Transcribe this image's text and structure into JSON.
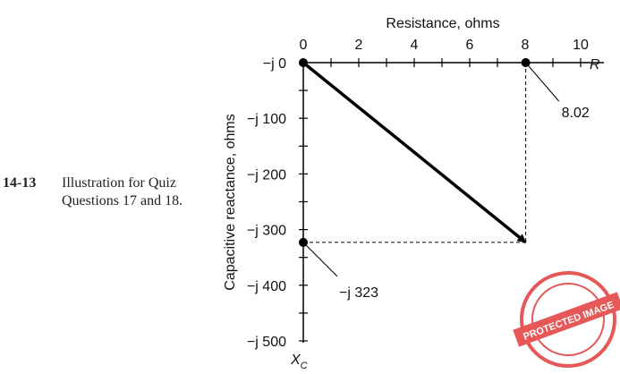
{
  "caption": {
    "number": "14-13",
    "lines": [
      "Illustration for Quiz",
      "Questions 17 and 18."
    ]
  },
  "chart_data": {
    "type": "vector-diagram",
    "x_axis": {
      "title": "Resistance, ohms",
      "symbol": "R",
      "range": [
        0,
        10
      ],
      "labeled_ticks": [
        0,
        2,
        4,
        6,
        8,
        10
      ],
      "tick_labels": [
        "0",
        "2",
        "4",
        "6",
        "8",
        "10"
      ],
      "minor_step": 1
    },
    "y_axis": {
      "title": "Capacitive reactance, ohms",
      "symbol": "X",
      "symbol_subscript": "C",
      "range": [
        0,
        -500
      ],
      "labeled_ticks": [
        0,
        -100,
        -200,
        -300,
        -400,
        -500
      ],
      "tick_labels": [
        "−j 0",
        "−j 100",
        "−j 200",
        "−j 300",
        "−j 400",
        "−j 500"
      ],
      "minor_step": 50
    },
    "vector": {
      "from": [
        0,
        0
      ],
      "to": [
        8.02,
        -323
      ]
    },
    "points": [
      {
        "x": 0,
        "y": 0
      },
      {
        "x": 8.02,
        "y": 0,
        "label": "8.02"
      },
      {
        "x": 0,
        "y": -323,
        "label": "−j 323"
      }
    ]
  },
  "watermark": {
    "text": "PROTECTED IMAGE",
    "color": "#e23b3b"
  }
}
